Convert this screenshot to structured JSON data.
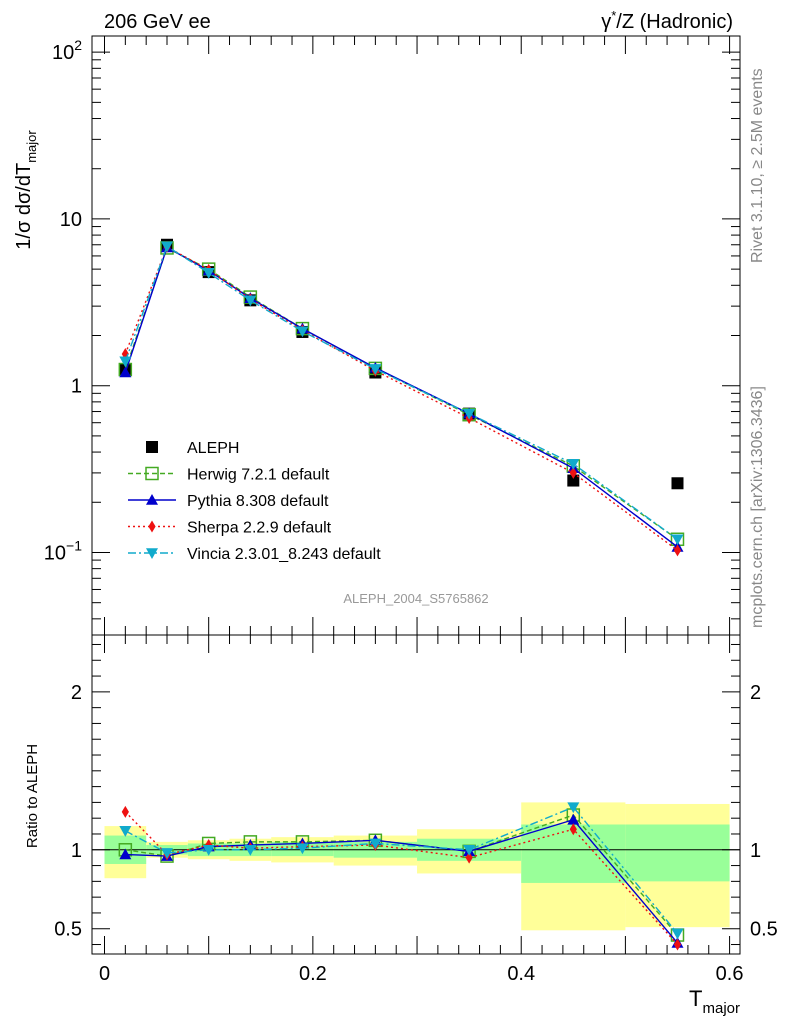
{
  "header": {
    "left": "206 GeV ee",
    "right_sup_base": "γ",
    "right_sup": "*",
    "right_rest": "/Z (Hadronic)"
  },
  "side_labels": {
    "rivet": "Rivet 3.1.10, ≥ 2.5M events",
    "mcplots": "mcplots.cern.ch [arXiv:1306.3436]"
  },
  "analysis_label": "ALEPH_2004_S5765862",
  "colors": {
    "data": "#000000",
    "herwig": "#44aa22",
    "pythia": "#0000cc",
    "sherpa": "#ee1111",
    "vincia": "#11aacc",
    "band_inner": "#99ff99",
    "band_outer": "#ffff99"
  },
  "chart_data": [
    {
      "type": "scatter",
      "panel": "main",
      "ylabel_pre": "1/σ  dσ/dT",
      "ylabel_sub": "major",
      "yscale": "log",
      "ylim": [
        0.032,
        125
      ],
      "xlim": [
        -0.012,
        0.61
      ],
      "ytick_labels": [
        {
          "value": 100,
          "base": "10",
          "exp": "2"
        },
        {
          "value": 10,
          "text": "10"
        },
        {
          "value": 1,
          "text": "1"
        },
        {
          "value": 0.1,
          "base": "10",
          "exp": "−1"
        }
      ],
      "x": [
        0.02,
        0.06,
        0.1,
        0.14,
        0.19,
        0.26,
        0.35,
        0.45,
        0.55
      ],
      "series": [
        {
          "key": "data",
          "name": "ALEPH",
          "values": [
            1.25,
            7.0,
            4.8,
            3.25,
            2.1,
            1.2,
            0.68,
            0.27,
            0.26
          ]
        },
        {
          "key": "herwig",
          "name": "Herwig 7.2.1 default",
          "values": [
            1.25,
            6.7,
            5.0,
            3.4,
            2.2,
            1.27,
            0.67,
            0.33,
            0.12
          ]
        },
        {
          "key": "pythia",
          "name": "Pythia 8.308 default",
          "values": [
            1.2,
            6.75,
            4.9,
            3.35,
            2.2,
            1.28,
            0.68,
            0.32,
            0.108
          ]
        },
        {
          "key": "sherpa",
          "name": "Sherpa 2.2.9 default",
          "values": [
            1.55,
            6.8,
            4.95,
            3.3,
            2.15,
            1.23,
            0.64,
            0.3,
            0.103
          ]
        },
        {
          "key": "vincia",
          "name": "Vincia 2.3.01_8.243 default",
          "values": [
            1.4,
            6.85,
            4.75,
            3.25,
            2.12,
            1.26,
            0.68,
            0.34,
            0.12
          ]
        }
      ]
    },
    {
      "type": "line",
      "panel": "ratio",
      "ylabel": "Ratio to ALEPH",
      "xlabel_pre": "T",
      "xlabel_sub": "major",
      "ylim": [
        0.34,
        2.36
      ],
      "xlim": [
        -0.012,
        0.61
      ],
      "yticks": [
        0.5,
        1,
        2
      ],
      "ytick_labels": [
        "0.5",
        "1",
        "2"
      ],
      "xticks": [
        0,
        0.2,
        0.4,
        0.6
      ],
      "xtick_labels": [
        "0",
        "0.2",
        "0.4",
        "0.6"
      ],
      "bands": [
        {
          "x0": 0.0,
          "x1": 0.04,
          "inner": [
            0.91,
            1.09
          ],
          "outer": [
            0.82,
            1.15
          ]
        },
        {
          "x0": 0.04,
          "x1": 0.08,
          "inner": [
            0.97,
            1.03
          ],
          "outer": [
            0.95,
            1.05
          ]
        },
        {
          "x0": 0.08,
          "x1": 0.12,
          "inner": [
            0.96,
            1.04
          ],
          "outer": [
            0.94,
            1.06
          ]
        },
        {
          "x0": 0.12,
          "x1": 0.16,
          "inner": [
            0.96,
            1.04
          ],
          "outer": [
            0.93,
            1.07
          ]
        },
        {
          "x0": 0.16,
          "x1": 0.22,
          "inner": [
            0.96,
            1.05
          ],
          "outer": [
            0.92,
            1.08
          ]
        },
        {
          "x0": 0.22,
          "x1": 0.3,
          "inner": [
            0.95,
            1.05
          ],
          "outer": [
            0.9,
            1.09
          ]
        },
        {
          "x0": 0.3,
          "x1": 0.4,
          "inner": [
            0.93,
            1.07
          ],
          "outer": [
            0.85,
            1.13
          ]
        },
        {
          "x0": 0.4,
          "x1": 0.5,
          "inner": [
            0.79,
            1.16
          ],
          "outer": [
            0.49,
            1.3
          ]
        },
        {
          "x0": 0.5,
          "x1": 0.6,
          "inner": [
            0.8,
            1.16
          ],
          "outer": [
            0.51,
            1.29
          ]
        }
      ],
      "series": [
        {
          "key": "herwig",
          "values": [
            1.0,
            0.96,
            1.04,
            1.05,
            1.05,
            1.06,
            0.99,
            1.22,
            0.46
          ]
        },
        {
          "key": "pythia",
          "values": [
            0.97,
            0.96,
            1.02,
            1.03,
            1.04,
            1.06,
            0.99,
            1.19,
            0.41
          ]
        },
        {
          "key": "sherpa",
          "values": [
            1.24,
            0.97,
            1.03,
            1.01,
            1.02,
            1.03,
            0.95,
            1.13,
            0.4
          ]
        },
        {
          "key": "vincia",
          "values": [
            1.12,
            0.98,
            1.0,
            1.0,
            1.01,
            1.04,
            1.0,
            1.27,
            0.47
          ]
        }
      ]
    }
  ]
}
